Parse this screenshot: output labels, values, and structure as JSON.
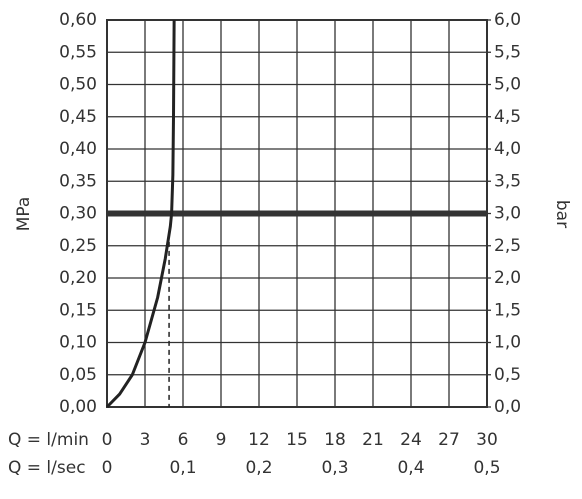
{
  "chart_data": {
    "type": "line",
    "ylabel": "MPa",
    "y2label": "bar",
    "xlabel": "Q = l/min",
    "x2label": "Q = l/sec",
    "xlim": [
      0,
      30
    ],
    "xticks": [
      0,
      3,
      6,
      9,
      12,
      15,
      18,
      21,
      24,
      27,
      30
    ],
    "x2lim": [
      0,
      0.5
    ],
    "x2ticks": [
      0,
      {
        "value": 0.1,
        "label": "0,1"
      },
      {
        "value": 0.2,
        "label": "0,2"
      },
      {
        "value": 0.3,
        "label": "0,3"
      },
      {
        "value": 0.4,
        "label": "0,4"
      },
      {
        "value": 0.5,
        "label": "0,5"
      }
    ],
    "ylim": [
      0,
      0.6
    ],
    "yticks": [
      {
        "value": 0,
        "label": "0,00"
      },
      {
        "value": 0.05,
        "label": "0,05"
      },
      {
        "value": 0.1,
        "label": "0,10"
      },
      {
        "value": 0.15,
        "label": "0,15"
      },
      {
        "value": 0.2,
        "label": "0,20"
      },
      {
        "value": 0.25,
        "label": "0,25"
      },
      {
        "value": 0.3,
        "label": "0,30"
      },
      {
        "value": 0.35,
        "label": "0,35"
      },
      {
        "value": 0.4,
        "label": "0,40"
      },
      {
        "value": 0.45,
        "label": "0,45"
      },
      {
        "value": 0.5,
        "label": "0,50"
      },
      {
        "value": 0.55,
        "label": "0,55"
      },
      {
        "value": 0.6,
        "label": "0,60"
      }
    ],
    "y2lim": [
      0,
      6
    ],
    "y2ticks": [
      {
        "value": 0,
        "label": "0,0"
      },
      {
        "value": 0.5,
        "label": "0,5"
      },
      {
        "value": 1,
        "label": "1,0"
      },
      {
        "value": 1.5,
        "label": "1,5"
      },
      {
        "value": 2,
        "label": "2,0"
      },
      {
        "value": 2.5,
        "label": "2,5"
      },
      {
        "value": 3,
        "label": "3,0"
      },
      {
        "value": 3.5,
        "label": "3,5"
      },
      {
        "value": 4,
        "label": "4,0"
      },
      {
        "value": 4.5,
        "label": "4,5"
      },
      {
        "value": 5,
        "label": "5,0"
      },
      {
        "value": 5.5,
        "label": "5,5"
      },
      {
        "value": 6,
        "label": "6,0"
      }
    ],
    "grid": true,
    "series": [
      {
        "color": "#222222",
        "x": [
          0,
          1,
          2,
          3,
          4,
          4.6,
          5,
          5.1,
          5.2,
          5.25,
          5.3
        ],
        "values": [
          0,
          0.02,
          0.05,
          0.1,
          0.17,
          0.23,
          0.28,
          0.3,
          0.36,
          0.45,
          0.6
        ]
      }
    ],
    "reference_line": 0.3,
    "drop_line": {
      "x": 4.9,
      "y": 0.27
    }
  }
}
